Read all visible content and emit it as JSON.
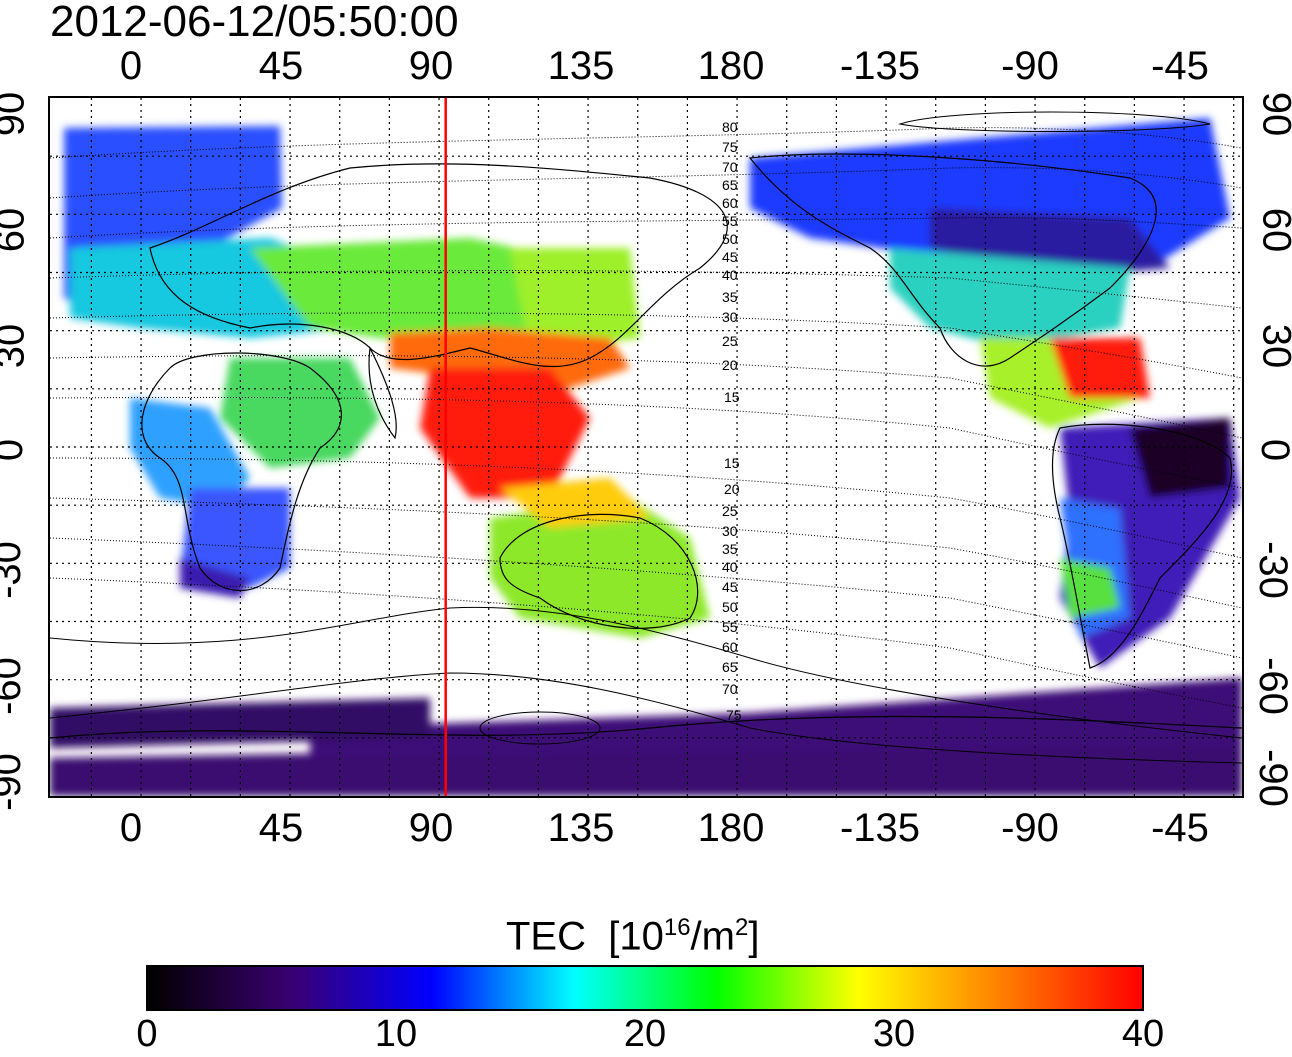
{
  "timestamp": "2012-06-12/05:50:00",
  "map": {
    "quantity": "TEC",
    "top_ticks": [
      "0",
      "45",
      "90",
      "135",
      "180",
      "-135",
      "-90",
      "-45"
    ],
    "bottom_ticks": [
      "0",
      "45",
      "90",
      "135",
      "180",
      "-135",
      "-90",
      "-45"
    ],
    "left_ticks": [
      "90",
      "60",
      "30",
      "0",
      "-30",
      "-60",
      "-90"
    ],
    "right_ticks": [
      "90",
      "60",
      "30",
      "0",
      "-30",
      "-60",
      "-90"
    ],
    "contour_labels": [
      "80",
      "75",
      "70",
      "65",
      "60",
      "55",
      "50",
      "45",
      "40",
      "35",
      "30",
      "25",
      "20",
      "15",
      "15",
      "20",
      "25",
      "30",
      "35",
      "40",
      "45",
      "50",
      "55",
      "60",
      "65",
      "70",
      "75"
    ],
    "red_line_longitude": 92,
    "grid": true,
    "colors": {
      "red_line": "#ff0000"
    }
  },
  "colorbar": {
    "title": "TEC",
    "unit_prefix": "[10",
    "unit_exp": "16",
    "unit_mid": "/m",
    "unit_exp2": "2",
    "unit_suffix": "]",
    "min": 0,
    "max": 40,
    "ticks": [
      "0",
      "10",
      "20",
      "30",
      "40"
    ],
    "colors": [
      "#000000",
      "#3a0070",
      "#0000ff",
      "#00ffff",
      "#00ff00",
      "#ffff00",
      "#ff8000",
      "#ff0000"
    ]
  }
}
